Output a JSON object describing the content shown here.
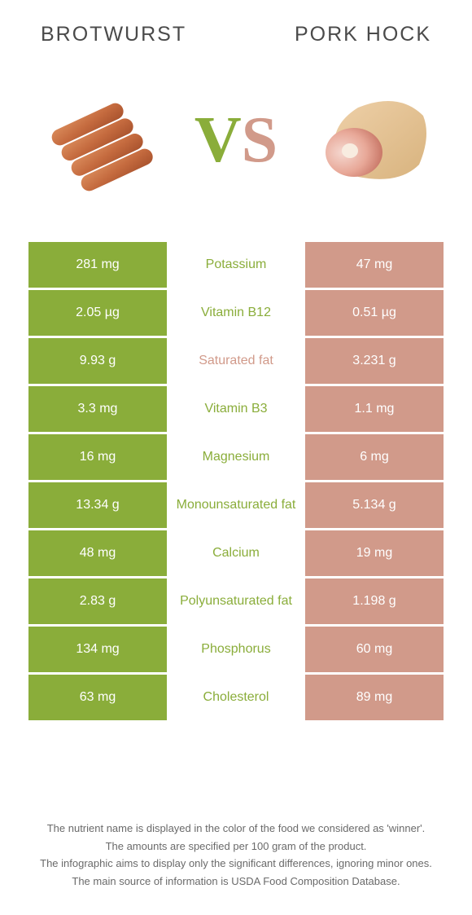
{
  "titles": {
    "left": "Brotwurst",
    "right": "Pork hock"
  },
  "vs": {
    "v": "V",
    "s": "S"
  },
  "colors": {
    "left": "#8aad3a",
    "right": "#d19a8a",
    "background": "#ffffff",
    "text": "#4a4a4a",
    "footnote": "#6a6a6a"
  },
  "rows": [
    {
      "left": "281 mg",
      "label": "Potassium",
      "right": "47 mg",
      "winner": "left"
    },
    {
      "left": "2.05 µg",
      "label": "Vitamin B12",
      "right": "0.51 µg",
      "winner": "left"
    },
    {
      "left": "9.93 g",
      "label": "Saturated fat",
      "right": "3.231 g",
      "winner": "right"
    },
    {
      "left": "3.3 mg",
      "label": "Vitamin B3",
      "right": "1.1 mg",
      "winner": "left"
    },
    {
      "left": "16 mg",
      "label": "Magnesium",
      "right": "6 mg",
      "winner": "left"
    },
    {
      "left": "13.34 g",
      "label": "Monounsaturated fat",
      "right": "5.134 g",
      "winner": "left"
    },
    {
      "left": "48 mg",
      "label": "Calcium",
      "right": "19 mg",
      "winner": "left"
    },
    {
      "left": "2.83 g",
      "label": "Polyunsaturated fat",
      "right": "1.198 g",
      "winner": "left"
    },
    {
      "left": "134 mg",
      "label": "Phosphorus",
      "right": "60 mg",
      "winner": "left"
    },
    {
      "left": "63 mg",
      "label": "Cholesterol",
      "right": "89 mg",
      "winner": "left"
    }
  ],
  "footnotes": [
    "The nutrient name is displayed in the color of the food we considered as 'winner'.",
    "The amounts are specified per 100 gram of the product.",
    "The infographic aims to display only the significant differences, ignoring minor ones.",
    "The main source of information is USDA Food Composition Database."
  ]
}
